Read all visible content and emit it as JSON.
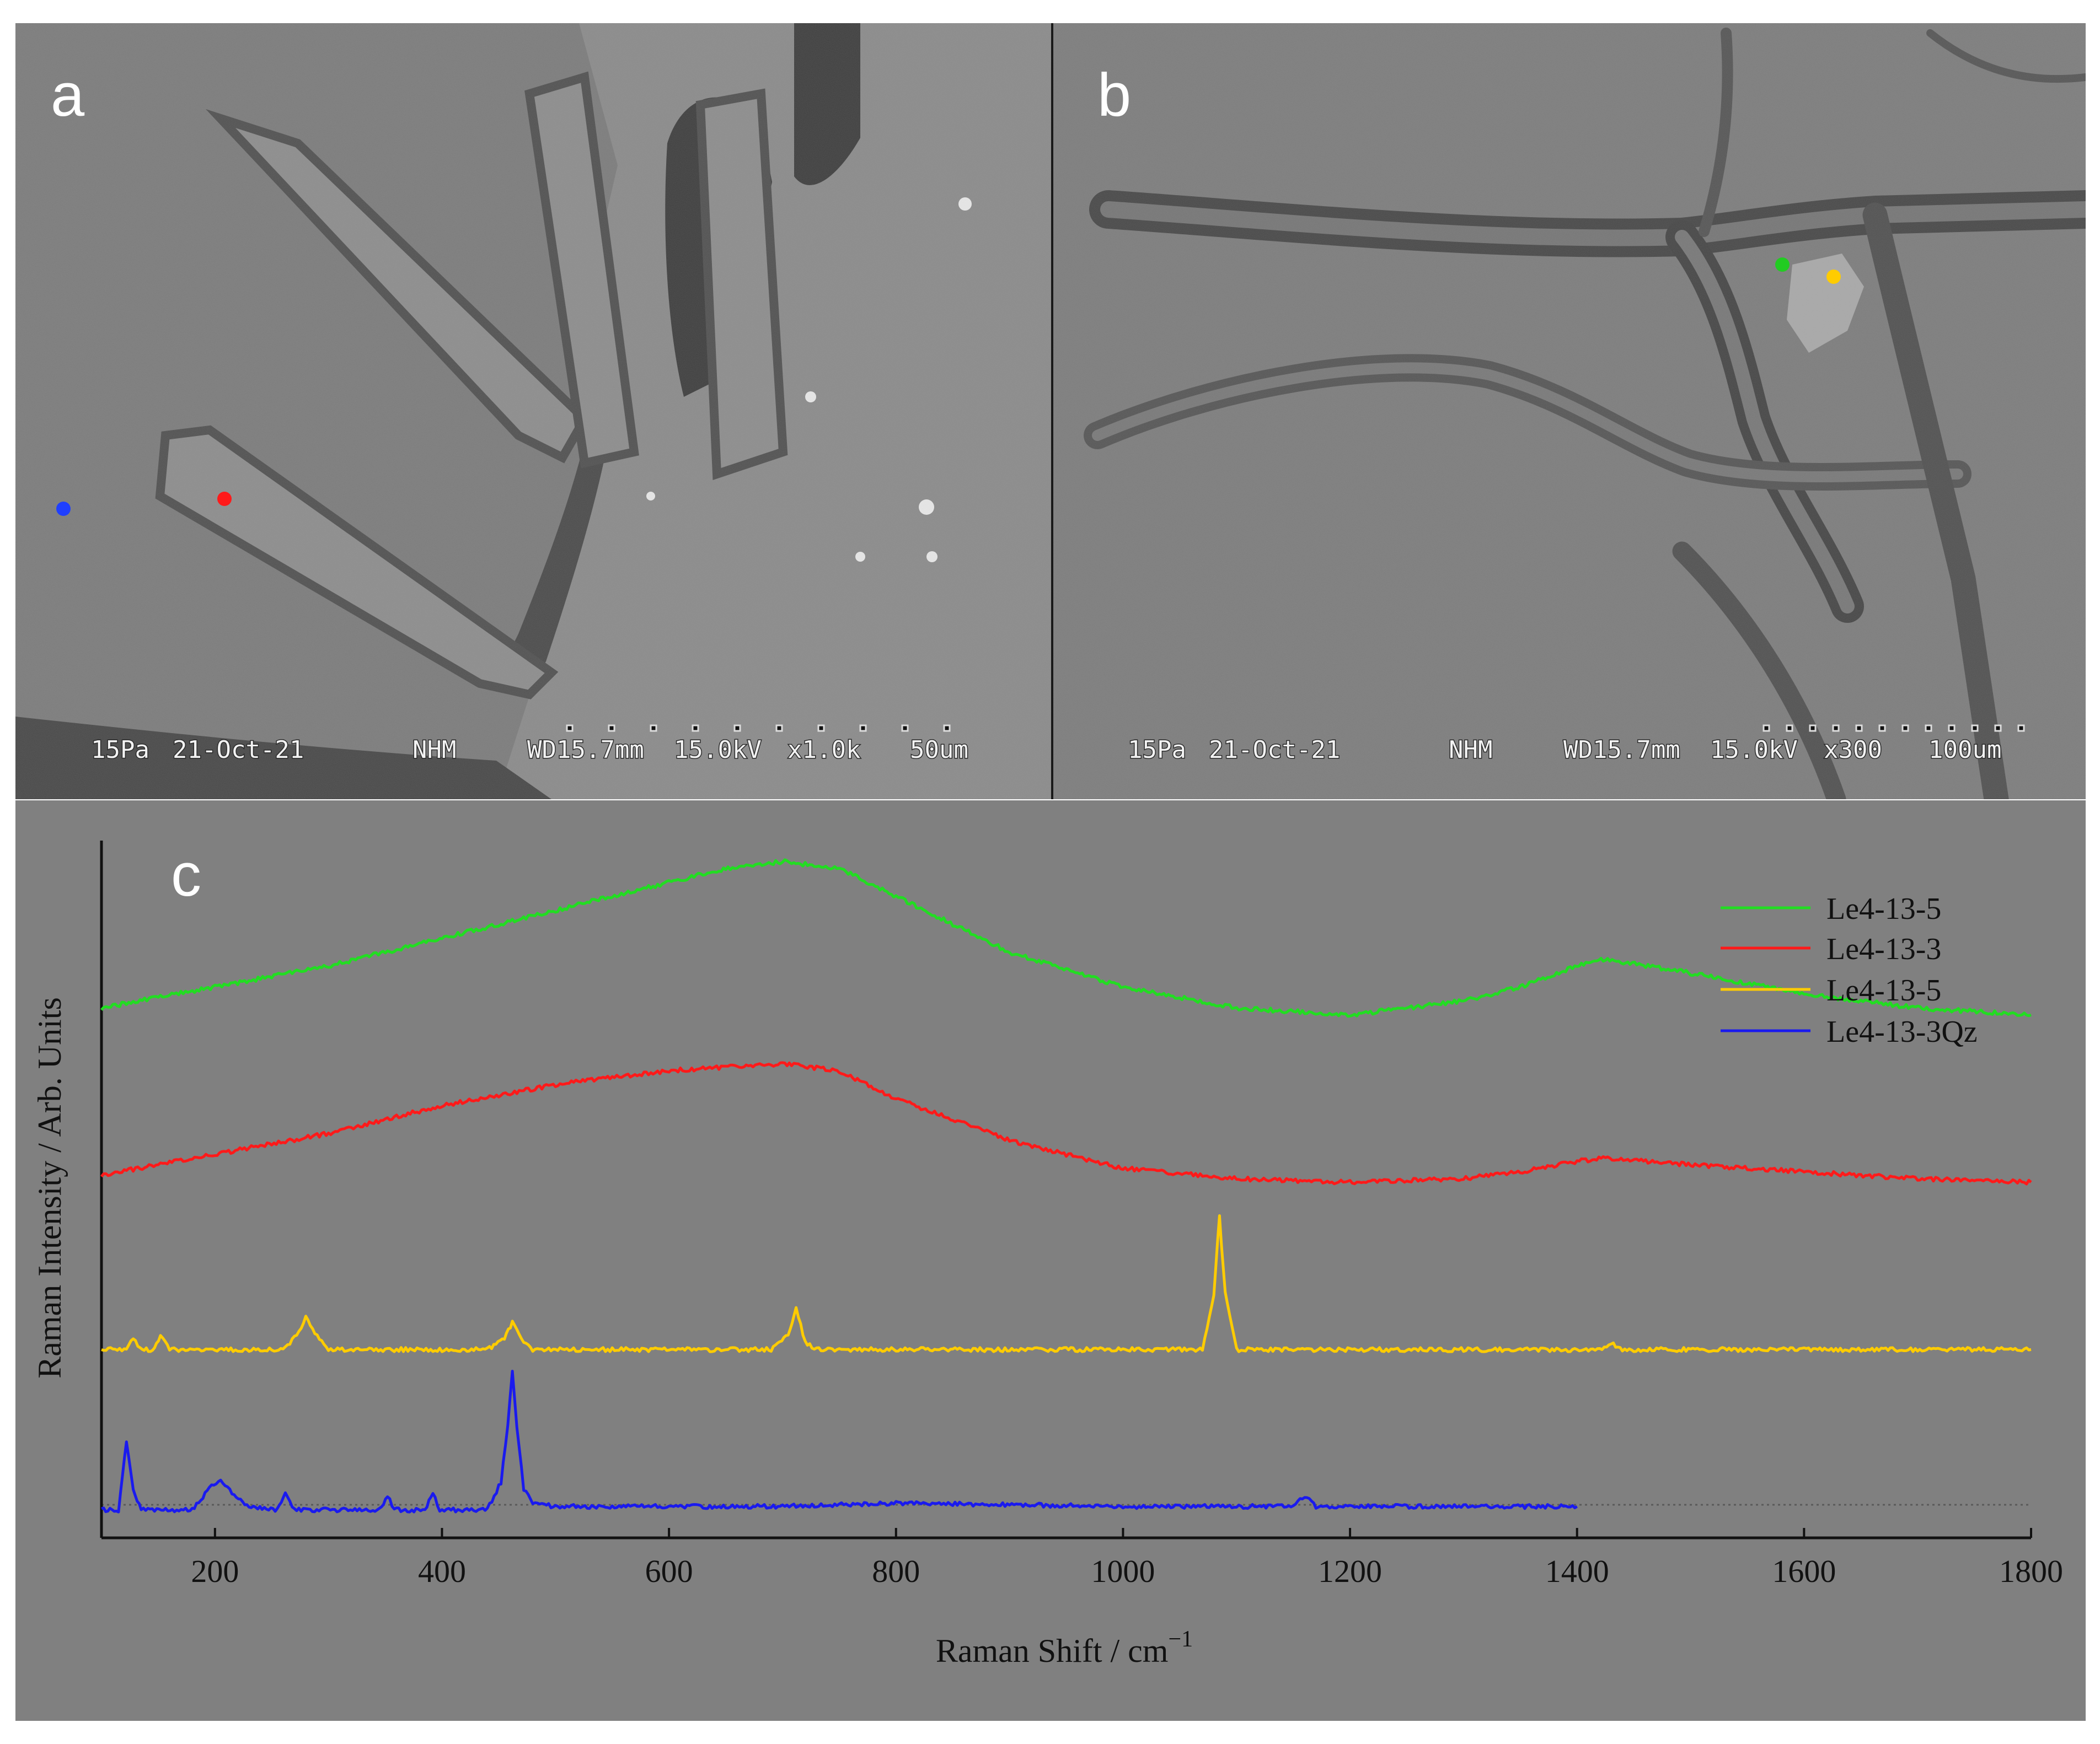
{
  "panels": {
    "a": {
      "letter": "a",
      "info": [
        "15Pa",
        "21-Oct-21",
        "NHM",
        "WD15.7mm",
        "15.0kV",
        "x1.0k",
        "50um"
      ],
      "markers": [
        {
          "name": "blue",
          "color": "#1f3fff"
        },
        {
          "name": "red",
          "color": "#ff1a1a"
        }
      ]
    },
    "b": {
      "letter": "b",
      "info": [
        "15Pa",
        "21-Oct-21",
        "NHM",
        "WD15.7mm",
        "15.0kV",
        "x300",
        "100um"
      ],
      "markers": [
        {
          "name": "green",
          "color": "#22cc22"
        },
        {
          "name": "yellow",
          "color": "#ffcc00"
        }
      ]
    },
    "c": {
      "letter": "c"
    }
  },
  "chart_data": {
    "type": "line",
    "xlabel": "Raman Shift / cm",
    "xlabel_sup": "−1",
    "ylabel": "Raman Intensity / Arb. Units",
    "xlim": [
      100,
      1800
    ],
    "ylim": [
      0,
      100
    ],
    "x_ticks": [
      "200",
      "400",
      "600",
      "800",
      "1000",
      "1200",
      "1400",
      "1600",
      "1800"
    ],
    "legend_position": "top-right",
    "series": [
      {
        "name": "Le4-13-5",
        "color": "#22dd22",
        "x": [
          100,
          200,
          300,
          400,
          500,
          600,
          650,
          700,
          750,
          800,
          900,
          1000,
          1100,
          1200,
          1300,
          1350,
          1400,
          1425,
          1500,
          1600,
          1700,
          1800
        ],
        "y": [
          76,
          79,
          82,
          86,
          90,
          94,
          96,
          97,
          96,
          92,
          84,
          79,
          76,
          75,
          77,
          79,
          82,
          83,
          81,
          78,
          76,
          75
        ]
      },
      {
        "name": "Le4-13-3",
        "color": "#ff1a1a",
        "x": [
          100,
          200,
          300,
          400,
          500,
          600,
          650,
          700,
          750,
          800,
          900,
          1000,
          1100,
          1200,
          1300,
          1350,
          1400,
          1425,
          1500,
          1600,
          1700,
          1800
        ],
        "y": [
          52,
          55,
          58,
          62,
          65,
          67,
          67.5,
          68,
          67,
          63,
          57,
          53,
          51.5,
          51,
          51.5,
          52.5,
          54,
          54.5,
          53.5,
          52.5,
          51.5,
          51
        ]
      },
      {
        "name": "Le4-13-5",
        "color": "#ffcc00",
        "x": [
          100,
          122,
          128,
          134,
          145,
          152,
          160,
          170,
          260,
          272,
          280,
          290,
          300,
          440,
          455,
          462,
          470,
          480,
          690,
          705,
          712,
          720,
          730,
          1070,
          1080,
          1085,
          1090,
          1100,
          1420,
          1430,
          1440,
          1800
        ],
        "y": [
          27,
          27,
          28.5,
          27,
          27,
          29,
          27,
          27,
          27,
          29,
          31.5,
          29,
          27,
          27,
          28.5,
          31,
          28.5,
          27,
          27,
          29,
          33,
          28,
          27,
          27,
          35,
          46,
          35,
          27,
          27,
          28,
          27,
          27
        ]
      },
      {
        "name": "Le4-13-3Qz",
        "color": "#1a1aee",
        "x": [
          100,
          115,
          122,
          128,
          135,
          180,
          195,
          205,
          215,
          230,
          255,
          262,
          270,
          345,
          352,
          358,
          385,
          392,
          398,
          440,
          452,
          458,
          462,
          466,
          472,
          480,
          500,
          690,
          800,
          1000,
          1150,
          1160,
          1170,
          1400
        ],
        "y": [
          4,
          4,
          14,
          7,
          4,
          4,
          7,
          8.5,
          6.5,
          4.5,
          4,
          6.5,
          4,
          4,
          6,
          4,
          4,
          6.5,
          4,
          4,
          8,
          16,
          24,
          16,
          7,
          5,
          4.5,
          4.5,
          5,
          4.5,
          4.5,
          6,
          4.5,
          4.5
        ]
      }
    ]
  }
}
